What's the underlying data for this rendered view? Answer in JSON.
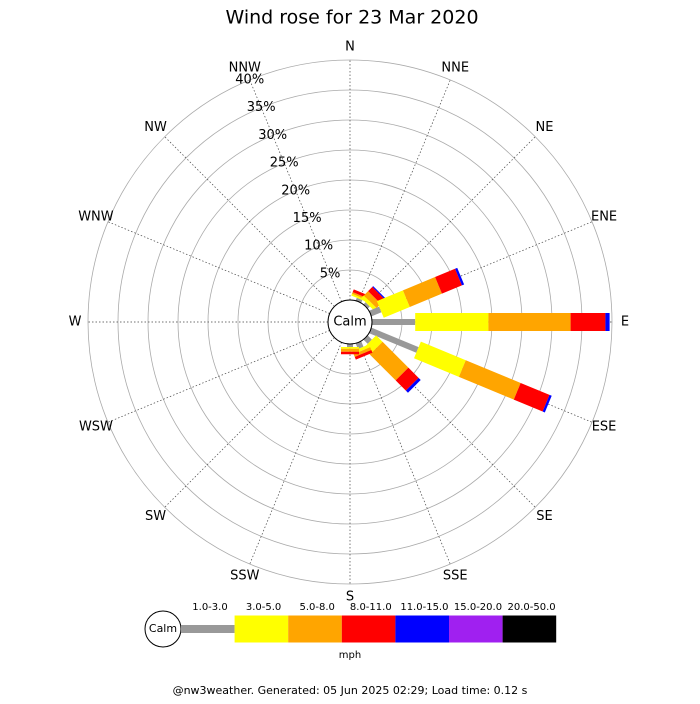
{
  "chart_data": {
    "type": "windrose",
    "title": "Wind rose for 23 Mar 2020",
    "categories": [
      "N",
      "NNE",
      "NE",
      "ENE",
      "E",
      "ESE",
      "SE",
      "SSE",
      "S",
      "SSW",
      "SW",
      "WSW",
      "W",
      "WNW",
      "NW",
      "NNW"
    ],
    "series": [
      {
        "name": "1.0-3.0",
        "color": "#999999",
        "values": [
          0,
          0.5,
          0.5,
          1.8,
          7.2,
          8.5,
          1.0,
          1.0,
          0.5,
          0,
          0,
          0,
          0,
          0,
          0,
          0
        ]
      },
      {
        "name": "3.0-5.0",
        "color": "#ffff00",
        "values": [
          0,
          0.3,
          0.6,
          4.7,
          12.2,
          8.1,
          1.5,
          0.5,
          0.3,
          0,
          0,
          0,
          0,
          0,
          0,
          0
        ]
      },
      {
        "name": "5.0-8.0",
        "color": "#ffa500",
        "values": [
          0,
          0.3,
          1.0,
          5.8,
          13.7,
          9.9,
          6.1,
          0.5,
          0.5,
          0,
          0,
          0,
          0,
          0,
          0,
          0
        ]
      },
      {
        "name": "8.0-11.0",
        "color": "#ff0000",
        "values": [
          0,
          0.5,
          1.0,
          3.6,
          5.8,
          5.2,
          2.4,
          0.5,
          0.4,
          0,
          0,
          0,
          0,
          0,
          0,
          0
        ]
      },
      {
        "name": "11.0-15.0",
        "color": "#0000ff",
        "values": [
          0,
          0,
          0.2,
          0.4,
          0.7,
          0.4,
          0.5,
          0,
          0,
          0,
          0,
          0,
          0,
          0,
          0,
          0
        ]
      },
      {
        "name": "15.0-20.0",
        "color": "#a020f0",
        "values": [
          0,
          0,
          0,
          0,
          0,
          0,
          0,
          0,
          0,
          0,
          0,
          0,
          0,
          0,
          0,
          0
        ]
      },
      {
        "name": "20.0-50.0",
        "color": "#000000",
        "values": [
          0,
          0,
          0,
          0,
          0,
          0,
          0,
          0,
          0,
          0,
          0,
          0,
          0,
          0,
          0,
          0
        ]
      }
    ],
    "rlim": [
      0,
      40
    ],
    "rticks": [
      {
        "value": 5,
        "label": "5%"
      },
      {
        "value": 10,
        "label": "10%"
      },
      {
        "value": 15,
        "label": "15%"
      },
      {
        "value": 20,
        "label": "20%"
      },
      {
        "value": 25,
        "label": "25%"
      },
      {
        "value": 30,
        "label": "30%"
      },
      {
        "value": 35,
        "label": "35%"
      },
      {
        "value": 40,
        "label": "40%"
      }
    ],
    "calm_label": "Calm",
    "unit": "mph",
    "footer": "@nw3weather. Generated: 05 Jun 2025 02:29; Load time: 0.12 s"
  }
}
